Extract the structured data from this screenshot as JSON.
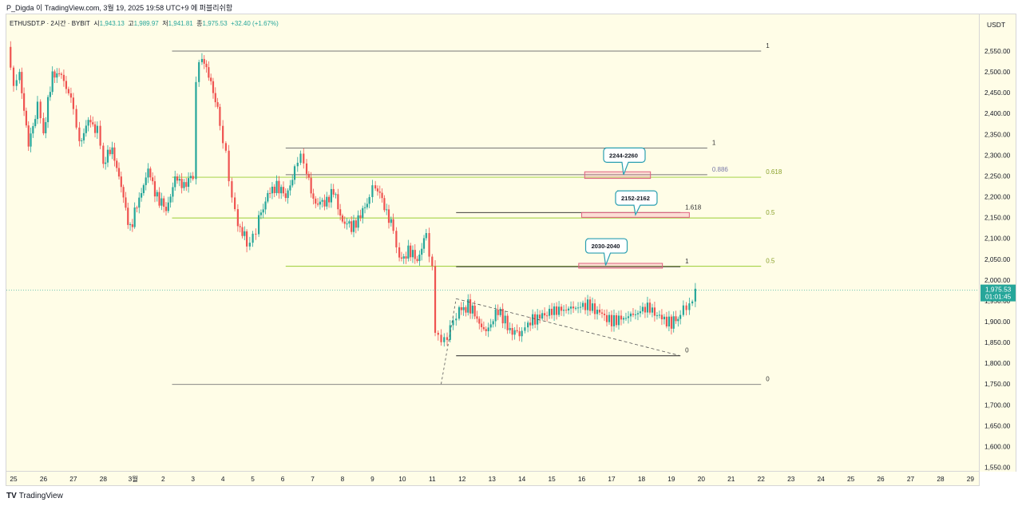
{
  "header": {
    "caption": "P_Digda 이 TradingView.com, 3월 19, 2025 19:58 UTC+9 에 퍼블리쉬함"
  },
  "legend": {
    "symbol": "ETHUSDT.P · 2시간 · BYBIT",
    "open_label": "시",
    "open": "1,943.13",
    "high_label": "고",
    "high": "1,989.97",
    "low_label": "저",
    "low": "1,941.81",
    "close_label": "종",
    "close": "1,975.53",
    "change": "+32.40 (+1.67%)"
  },
  "axis": {
    "currency": "USDT"
  },
  "footer": {
    "logo": "TV",
    "brand": "TradingView"
  },
  "colors": {
    "up": "#26a69a",
    "down": "#ef5350",
    "last_price_bg": "#26a69a",
    "fib_green": "#9acd32",
    "fib_gray": "#555555",
    "box_border": "#e06080",
    "callout_border": "#2a9fb0"
  },
  "chart_data": {
    "type": "candlestick",
    "symbol": "ETHUSDT.P",
    "timeframe": "2시간",
    "exchange": "BYBIT",
    "ylim": [
      1530,
      2580
    ],
    "yticks": [
      1550,
      1600,
      1650,
      1700,
      1750,
      1800,
      1850,
      1900,
      1950,
      2000,
      2050,
      2100,
      2150,
      2200,
      2250,
      2300,
      2350,
      2400,
      2450,
      2500,
      2550
    ],
    "ytick_labels": [
      "1,550.00",
      "1,600.00",
      "1,650.00",
      "1,700.00",
      "1,750.00",
      "1,800.00",
      "1,850.00",
      "1,900.00",
      "1,950.00",
      "2,000.00",
      "2,050.00",
      "2,100.00",
      "2,150.00",
      "2,200.00",
      "2,250.00",
      "2,300.00",
      "2,350.00",
      "2,400.00",
      "2,450.00",
      "2,500.00",
      "2,550.00"
    ],
    "x_ticks": [
      {
        "day": 25,
        "label": "25"
      },
      {
        "day": 26,
        "label": "26"
      },
      {
        "day": 27,
        "label": "27"
      },
      {
        "day": 28,
        "label": "28"
      },
      {
        "day": 29,
        "label": "3월"
      },
      {
        "day": 30,
        "label": "2"
      },
      {
        "day": 31,
        "label": "3"
      },
      {
        "day": 32,
        "label": "4"
      },
      {
        "day": 33,
        "label": "5"
      },
      {
        "day": 34,
        "label": "6"
      },
      {
        "day": 35,
        "label": "7"
      },
      {
        "day": 36,
        "label": "8"
      },
      {
        "day": 37,
        "label": "9"
      },
      {
        "day": 38,
        "label": "10"
      },
      {
        "day": 39,
        "label": "11"
      },
      {
        "day": 40,
        "label": "12"
      },
      {
        "day": 41,
        "label": "13"
      },
      {
        "day": 42,
        "label": "14"
      },
      {
        "day": 43,
        "label": "15"
      },
      {
        "day": 44,
        "label": "16"
      },
      {
        "day": 45,
        "label": "17"
      },
      {
        "day": 46,
        "label": "18"
      },
      {
        "day": 47,
        "label": "19"
      },
      {
        "day": 48,
        "label": "20"
      },
      {
        "day": 49,
        "label": "21"
      },
      {
        "day": 50,
        "label": "22"
      },
      {
        "day": 51,
        "label": "23"
      },
      {
        "day": 52,
        "label": "24"
      },
      {
        "day": 53,
        "label": "25"
      },
      {
        "day": 54,
        "label": "26"
      },
      {
        "day": 55,
        "label": "27"
      },
      {
        "day": 56,
        "label": "28"
      },
      {
        "day": 57,
        "label": "29"
      }
    ],
    "close_path": [
      [
        24.8,
        2560
      ],
      [
        25.0,
        2470
      ],
      [
        25.2,
        2500
      ],
      [
        25.5,
        2320
      ],
      [
        25.8,
        2420
      ],
      [
        26.0,
        2350
      ],
      [
        26.3,
        2500
      ],
      [
        26.6,
        2490
      ],
      [
        27.0,
        2420
      ],
      [
        27.2,
        2330
      ],
      [
        27.5,
        2380
      ],
      [
        27.8,
        2360
      ],
      [
        28.0,
        2280
      ],
      [
        28.3,
        2320
      ],
      [
        28.6,
        2220
      ],
      [
        28.9,
        2120
      ],
      [
        29.2,
        2200
      ],
      [
        29.5,
        2260
      ],
      [
        29.8,
        2200
      ],
      [
        30.1,
        2170
      ],
      [
        30.4,
        2240
      ],
      [
        30.7,
        2230
      ],
      [
        31.0,
        2250
      ],
      [
        31.1,
        2490
      ],
      [
        31.3,
        2530
      ],
      [
        31.6,
        2480
      ],
      [
        31.9,
        2380
      ],
      [
        32.1,
        2300
      ],
      [
        32.3,
        2200
      ],
      [
        32.5,
        2140
      ],
      [
        32.8,
        2090
      ],
      [
        33.0,
        2100
      ],
      [
        33.2,
        2150
      ],
      [
        33.5,
        2200
      ],
      [
        33.8,
        2230
      ],
      [
        34.1,
        2200
      ],
      [
        34.4,
        2260
      ],
      [
        34.6,
        2300
      ],
      [
        34.8,
        2250
      ],
      [
        35.1,
        2180
      ],
      [
        35.4,
        2190
      ],
      [
        35.7,
        2210
      ],
      [
        36.0,
        2140
      ],
      [
        36.3,
        2130
      ],
      [
        36.6,
        2150
      ],
      [
        36.9,
        2200
      ],
      [
        37.1,
        2230
      ],
      [
        37.4,
        2180
      ],
      [
        37.7,
        2120
      ],
      [
        37.9,
        2040
      ],
      [
        38.2,
        2070
      ],
      [
        38.5,
        2050
      ],
      [
        38.8,
        2110
      ],
      [
        39.0,
        2020
      ],
      [
        39.1,
        1880
      ],
      [
        39.3,
        1850
      ],
      [
        39.5,
        1860
      ],
      [
        39.7,
        1900
      ],
      [
        39.9,
        1920
      ],
      [
        40.2,
        1940
      ],
      [
        40.5,
        1910
      ],
      [
        40.8,
        1870
      ],
      [
        41.2,
        1930
      ],
      [
        41.6,
        1880
      ],
      [
        42.0,
        1870
      ],
      [
        42.2,
        1900
      ],
      [
        42.6,
        1910
      ],
      [
        43.0,
        1925
      ],
      [
        43.4,
        1930
      ],
      [
        43.8,
        1935
      ],
      [
        44.2,
        1940
      ],
      [
        44.6,
        1920
      ],
      [
        45.0,
        1900
      ],
      [
        45.4,
        1910
      ],
      [
        45.8,
        1920
      ],
      [
        46.2,
        1935
      ],
      [
        46.6,
        1910
      ],
      [
        47.0,
        1895
      ],
      [
        47.3,
        1915
      ],
      [
        47.5,
        1935
      ],
      [
        47.7,
        1943
      ],
      [
        47.8,
        1975.53
      ]
    ],
    "last_price": {
      "label": "1,975.53",
      "countdown": "01:01:45"
    },
    "horizontal_lines": [
      {
        "from": 30.3,
        "to": 50.0,
        "price": 2550,
        "color": "gray",
        "label": "1"
      },
      {
        "from": 34.1,
        "to": 48.2,
        "price": 2317,
        "color": "gray",
        "label": "1"
      },
      {
        "from": 34.1,
        "to": 48.2,
        "price": 2253,
        "color": "gray",
        "label": "0.886"
      },
      {
        "from": 30.3,
        "to": 50.0,
        "price": 2247,
        "color": "green",
        "label": "0.618"
      },
      {
        "from": 30.3,
        "to": 50.0,
        "price": 2149,
        "color": "green",
        "label": "0.5"
      },
      {
        "from": 39.8,
        "to": 47.3,
        "price": 2162,
        "color": "black",
        "label": "1.618"
      },
      {
        "from": 34.1,
        "to": 50.0,
        "price": 2033,
        "color": "green",
        "label": "0.5"
      },
      {
        "from": 39.8,
        "to": 47.3,
        "price": 2032,
        "color": "black",
        "label": "1"
      },
      {
        "from": 39.8,
        "to": 47.3,
        "price": 1818,
        "color": "black",
        "label": "0"
      },
      {
        "from": 30.3,
        "to": 50.0,
        "price": 1749,
        "color": "gray",
        "label": "0"
      }
    ],
    "zones": [
      {
        "from": 44.1,
        "to": 46.3,
        "high": 2260,
        "low": 2244
      },
      {
        "from": 44.0,
        "to": 47.6,
        "high": 2162,
        "low": 2152
      },
      {
        "from": 43.9,
        "to": 46.7,
        "high": 2040,
        "low": 2030
      }
    ],
    "callouts": [
      {
        "text": "2244-2260",
        "x": 45.4,
        "price": 2300,
        "tip_price": 2253
      },
      {
        "text": "2152-2162",
        "x": 45.8,
        "price": 2197,
        "tip_price": 2157
      },
      {
        "text": "2030-2040",
        "x": 44.8,
        "price": 2082,
        "tip_price": 2035
      }
    ],
    "trendline": {
      "from": [
        39.8,
        1955
      ],
      "to": [
        47.3,
        1818
      ],
      "style": "dashed"
    },
    "marker_line": {
      "from": [
        39.3,
        1750
      ],
      "to": [
        39.8,
        1955
      ],
      "style": "dashed"
    }
  }
}
